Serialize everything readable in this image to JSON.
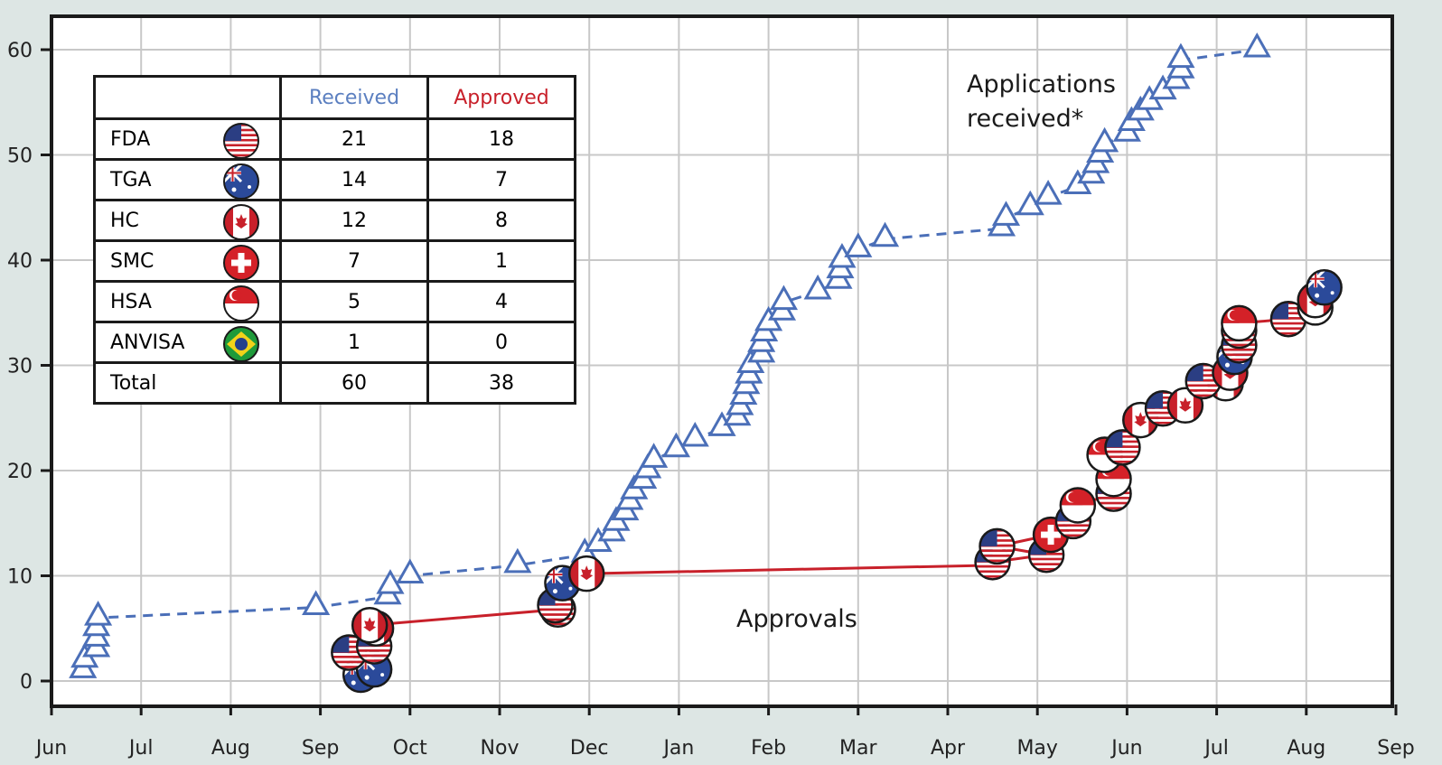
{
  "colors": {
    "received": "#4b6fb8",
    "approved": "#c8202a",
    "grid": "#c8c8c8",
    "frame": "#1a1a1a",
    "background": "#dde6e4"
  },
  "annotations": {
    "received_label_1": "Applications",
    "received_label_2": "received*",
    "approved_label": "Approvals"
  },
  "table": {
    "header": {
      "received": "Received",
      "approved": "Approved"
    },
    "rows": [
      {
        "agency": "FDA",
        "flag": "usa",
        "received": "21",
        "approved": "18"
      },
      {
        "agency": "TGA",
        "flag": "australia",
        "received": "14",
        "approved": "7"
      },
      {
        "agency": "HC",
        "flag": "canada",
        "received": "12",
        "approved": "8"
      },
      {
        "agency": "SMC",
        "flag": "switzerland",
        "received": "7",
        "approved": "1"
      },
      {
        "agency": "HSA",
        "flag": "singapore",
        "received": "5",
        "approved": "4"
      },
      {
        "agency": "ANVISA",
        "flag": "brazil",
        "received": "1",
        "approved": "0"
      }
    ],
    "total": {
      "label": "Total",
      "received": "60",
      "approved": "38"
    }
  },
  "chart_data": {
    "type": "line",
    "x_unit": "month",
    "xlim": [
      0,
      15
    ],
    "ylim": [
      -3,
      63
    ],
    "grid": true,
    "x_tick_labels": [
      "Jun",
      "Jul",
      "Aug",
      "Sep",
      "Oct",
      "Nov",
      "Dec",
      "Jan",
      "Feb",
      "Mar",
      "Apr",
      "May",
      "Jun",
      "Jul",
      "Aug",
      "Sep"
    ],
    "y_ticks": [
      0,
      10,
      20,
      30,
      40,
      50,
      60
    ],
    "y_tick_labels": [
      "0",
      "10",
      "20",
      "30",
      "40",
      "50",
      "60"
    ],
    "series": [
      {
        "marker": "triangle",
        "style": "dashed",
        "points": [
          [
            0.35,
            1
          ],
          [
            0.37,
            2
          ],
          [
            0.5,
            3
          ],
          [
            0.5,
            4
          ],
          [
            0.5,
            5
          ],
          [
            0.52,
            6
          ],
          [
            2.95,
            7
          ],
          [
            3.75,
            8
          ],
          [
            3.78,
            9
          ],
          [
            4.0,
            10
          ],
          [
            5.2,
            11
          ],
          [
            5.95,
            12
          ],
          [
            6.1,
            13
          ],
          [
            6.25,
            14
          ],
          [
            6.3,
            15
          ],
          [
            6.4,
            16
          ],
          [
            6.45,
            17
          ],
          [
            6.5,
            18
          ],
          [
            6.6,
            19
          ],
          [
            6.65,
            20
          ],
          [
            6.72,
            21
          ],
          [
            6.97,
            22
          ],
          [
            7.18,
            23
          ],
          [
            7.48,
            24
          ],
          [
            7.65,
            25
          ],
          [
            7.68,
            26
          ],
          [
            7.72,
            27
          ],
          [
            7.75,
            28
          ],
          [
            7.78,
            29
          ],
          [
            7.8,
            30
          ],
          [
            7.92,
            31
          ],
          [
            7.92,
            32
          ],
          [
            7.95,
            33
          ],
          [
            8.0,
            34
          ],
          [
            8.15,
            35
          ],
          [
            8.17,
            36
          ],
          [
            8.55,
            37
          ],
          [
            8.78,
            38
          ],
          [
            8.8,
            39
          ],
          [
            8.82,
            40
          ],
          [
            9.0,
            41
          ],
          [
            9.3,
            42
          ],
          [
            10.6,
            43
          ],
          [
            10.65,
            44
          ],
          [
            10.92,
            45
          ],
          [
            11.12,
            46
          ],
          [
            11.45,
            47
          ],
          [
            11.6,
            48
          ],
          [
            11.65,
            49
          ],
          [
            11.7,
            50
          ],
          [
            11.75,
            51
          ],
          [
            12.0,
            52
          ],
          [
            12.05,
            53
          ],
          [
            12.15,
            54
          ],
          [
            12.25,
            55
          ],
          [
            12.4,
            56
          ],
          [
            12.55,
            57
          ],
          [
            12.6,
            58
          ],
          [
            12.6,
            59
          ],
          [
            13.45,
            60
          ]
        ]
      },
      {
        "marker": "flag",
        "style": "solid",
        "points": [
          [
            3.45,
            0.6,
            "australia"
          ],
          [
            3.6,
            1.1,
            "australia"
          ],
          [
            3.32,
            2.7,
            "usa"
          ],
          [
            3.6,
            3.3,
            "usa"
          ],
          [
            3.62,
            5.0,
            "canada"
          ],
          [
            3.55,
            5.3,
            "canada"
          ],
          [
            5.65,
            6.8,
            "usa"
          ],
          [
            5.62,
            7.2,
            "usa"
          ],
          [
            5.7,
            9.3,
            "australia"
          ],
          [
            5.97,
            10.2,
            "canada"
          ],
          [
            10.5,
            11.3,
            "usa"
          ],
          [
            10.55,
            12.8,
            "usa"
          ],
          [
            11.1,
            12.0,
            "usa"
          ],
          [
            11.15,
            13.9,
            "switzerland"
          ],
          [
            11.4,
            15.2,
            "usa"
          ],
          [
            11.45,
            16.7,
            "singapore"
          ],
          [
            11.85,
            17.8,
            "usa"
          ],
          [
            11.85,
            19.2,
            "singapore"
          ],
          [
            11.95,
            22.2,
            "usa"
          ],
          [
            11.75,
            21.5,
            "singapore"
          ],
          [
            12.15,
            24.8,
            "canada"
          ],
          [
            12.4,
            25.9,
            "usa"
          ],
          [
            12.65,
            26.2,
            "canada"
          ],
          [
            12.85,
            28.5,
            "usa"
          ],
          [
            13.15,
            29.3,
            "canada"
          ],
          [
            13.1,
            28.3,
            "canada"
          ],
          [
            13.25,
            31.9,
            "usa"
          ],
          [
            13.2,
            30.8,
            "australia"
          ],
          [
            13.25,
            33.3,
            "usa"
          ],
          [
            13.25,
            34.0,
            "singapore"
          ],
          [
            13.8,
            34.4,
            "usa"
          ],
          [
            14.1,
            35.5,
            "singapore"
          ],
          [
            14.1,
            36.2,
            "canada"
          ],
          [
            14.2,
            37.4,
            "australia"
          ]
        ]
      }
    ]
  }
}
